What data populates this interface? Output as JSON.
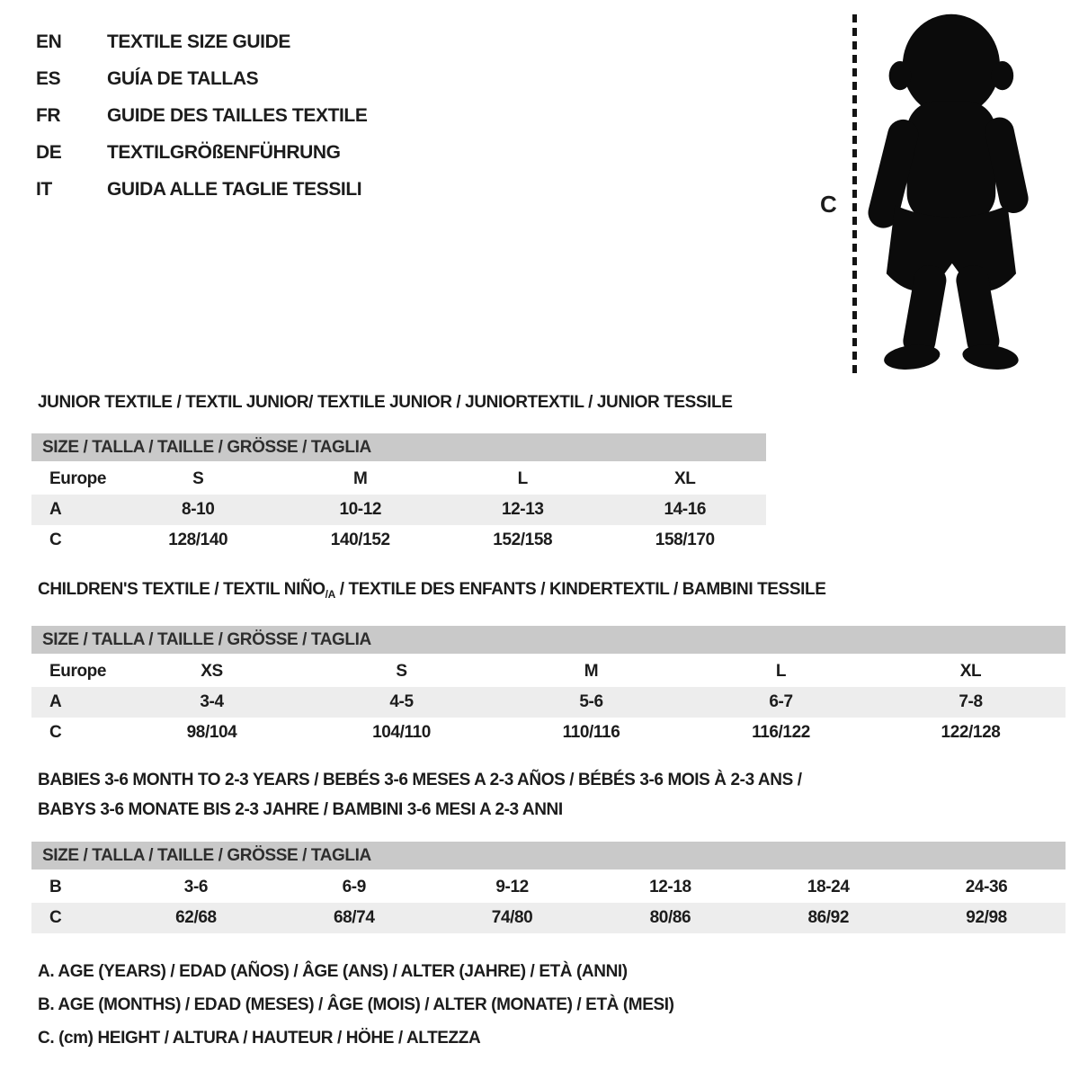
{
  "page": {
    "background": "#ffffff",
    "text_color": "#1c1c1c",
    "header_bar_color": "#c9c9c9",
    "row_stripe_color": "#ededed"
  },
  "language_header": {
    "items": [
      {
        "code": "EN",
        "label": "TEXTILE SIZE GUIDE"
      },
      {
        "code": "ES",
        "label": "GUÍA DE TALLAS"
      },
      {
        "code": "FR",
        "label": "GUIDE DES TAILLES TEXTILE"
      },
      {
        "code": "DE",
        "label": "TEXTILGRÖßENFÜHRUNG"
      },
      {
        "code": "IT",
        "label": "GUIDA ALLE TAGLIE TESSILI"
      }
    ]
  },
  "figure": {
    "measure_label": "C",
    "icon": "toddler-silhouette-icon"
  },
  "size_tables": [
    {
      "title": "JUNIOR TEXTILE / TEXTIL JUNIOR/ TEXTILE JUNIOR / JUNIORTEXTIL / JUNIOR TESSILE",
      "size_header": "SIZE / TALLA / TAILLE / GRÖSSE / TAGLIA",
      "rows": [
        {
          "label": "Europe",
          "values": [
            "S",
            "M",
            "L",
            "XL"
          ]
        },
        {
          "label": "A",
          "values": [
            "8-10",
            "10-12",
            "12-13",
            "14-16"
          ]
        },
        {
          "label": "C",
          "values": [
            "128/140",
            "140/152",
            "152/158",
            "158/170"
          ]
        }
      ]
    },
    {
      "title_parts": {
        "pre": "CHILDREN'S TEXTILE / TEXTIL NIÑO",
        "sub": "/A",
        "post": " / TEXTILE DES ENFANTS / KINDERTEXTIL / BAMBINI TESSILE"
      },
      "size_header": "SIZE / TALLA / TAILLE / GRÖSSE / TAGLIA",
      "rows": [
        {
          "label": "Europe",
          "values": [
            "XS",
            "S",
            "M",
            "L",
            "XL"
          ]
        },
        {
          "label": "A",
          "values": [
            "3-4",
            "4-5",
            "5-6",
            "6-7",
            "7-8"
          ]
        },
        {
          "label": "C",
          "values": [
            "98/104",
            "104/110",
            "110/116",
            "116/122",
            "122/128"
          ]
        }
      ]
    },
    {
      "title_lines": [
        "BABIES 3-6 MONTH TO 2-3 YEARS / BEBÉS 3-6 MESES A 2-3 AÑOS / BÉBÉS 3-6 MOIS À 2-3 ANS /",
        "BABYS 3-6 MONATE BIS 2-3 JAHRE / BAMBINI 3-6 MESI A 2-3 ANNI"
      ],
      "size_header": "SIZE / TALLA / TAILLE / GRÖSSE / TAGLIA",
      "rows": [
        {
          "label": "B",
          "values": [
            "3-6",
            "6-9",
            "9-12",
            "12-18",
            "18-24",
            "24-36"
          ]
        },
        {
          "label": "C",
          "values": [
            "62/68",
            "68/74",
            "74/80",
            "80/86",
            "86/92",
            "92/98"
          ]
        }
      ]
    }
  ],
  "legend": {
    "lines": [
      "A. AGE (YEARS) / EDAD (AÑOS) / ÂGE (ANS) / ALTER (JAHRE) / ETÀ (ANNI)",
      "B. AGE (MONTHS) / EDAD (MESES) / ÂGE (MOIS) / ALTER (MONATE) / ETÀ (MESI)",
      "C. (cm) HEIGHT / ALTURA / HAUTEUR / HÖHE / ALTEZZA"
    ]
  }
}
